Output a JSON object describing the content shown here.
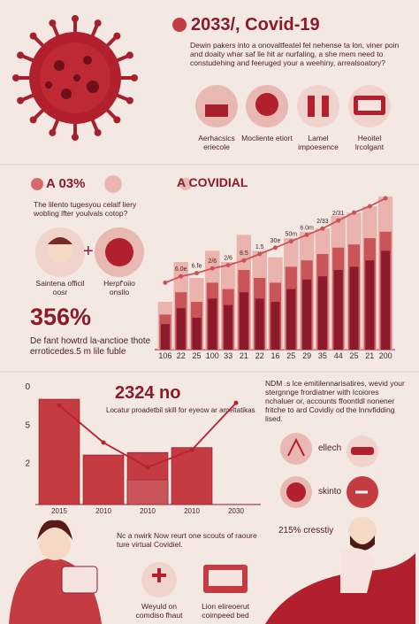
{
  "header": {
    "title": "2033/, Covid-19",
    "intro": "Dewin pakers into a onovaltfeatel fel nehense ta lon, viner poin and doaity whar saf lle hit ar nurfaling, a she mem need to constudehing and feeruged your a weehiny, arrealsoatory?"
  },
  "icons": [
    "Aerhacsics eriecole",
    "Mocliente etiort",
    "Lamel impoesence",
    "Heoitel lrcolgant"
  ],
  "left": {
    "heading": "A 03%",
    "question": "The lilento tugesyou celalf liery wobling lfter youlvals cotop?",
    "face_label": "Saintena officil oosr",
    "virus_label": "Herpf'oiio onsllo",
    "stat": "356%",
    "note": "De fant howtrd la-anctioe thote erroticedes.5 m lile fuble"
  },
  "right": {
    "text": "NDM .s lce emitilennarisatires, wevid your stergnnge frordiatner with Icoiores nchaluer or, accounts ffoontldl nonener fritche to ard Covidiy od the lnnvfidding lised.",
    "item1": "ellech",
    "item2": "skinto"
  },
  "footer": {
    "text": "Nc a nwirk Now reurt one scouts of raoure ture virtual Covidiel.",
    "label1": "Weyuld on comdiso fhaut",
    "label2": "Lion elireoerut coimpeed bed",
    "stat": "215% cresstiy"
  },
  "chart_data": [
    {
      "type": "bar",
      "title": "A COVIDIAL",
      "categories": [
        "106",
        "22",
        "25",
        "100",
        "33",
        "21",
        "22",
        "16",
        "25",
        "29",
        "35",
        "44",
        "25",
        "21",
        "200"
      ],
      "ylim": [
        0,
        100
      ],
      "series": [
        {
          "color": "#eab3ae",
          "values": [
            30,
            55,
            45,
            62,
            55,
            72,
            62,
            58,
            70,
            74,
            76,
            84,
            86,
            90,
            96
          ]
        },
        {
          "color": "#c9545a",
          "values": [
            22,
            36,
            30,
            42,
            38,
            50,
            45,
            42,
            52,
            56,
            60,
            64,
            66,
            70,
            74
          ]
        },
        {
          "color": "#8b1a2b",
          "values": [
            16,
            26,
            20,
            32,
            28,
            36,
            32,
            30,
            38,
            44,
            46,
            50,
            52,
            56,
            62
          ]
        },
        {
          "type": "line",
          "color": "#c9545a",
          "values": [
            42,
            46,
            48,
            51,
            53,
            56,
            60,
            64,
            68,
            72,
            76,
            81,
            86,
            90,
            95
          ],
          "point_labels": [
            null,
            "6.0e",
            "6.fe",
            "2/6",
            "2/6",
            "8.5",
            "1.5",
            "30e",
            "50m",
            "6.0m",
            "2/33",
            "2/31",
            null,
            null,
            null
          ]
        }
      ]
    },
    {
      "type": "bar",
      "title": "2324 no",
      "subtitle": "Locatur proadetbil skill for eyeow ar ameltatikas",
      "categories": [
        "2015",
        "2010",
        "2010",
        "2010",
        "2030"
      ],
      "ylabels": [
        "0",
        "5",
        "2"
      ],
      "ylim": [
        0,
        100
      ],
      "series": [
        {
          "color": "#c53b42",
          "values": [
            85,
            40,
            42,
            46,
            null
          ]
        },
        {
          "color": "#c9545a",
          "values": [
            null,
            null,
            20,
            null,
            null
          ]
        },
        {
          "type": "line",
          "color": "#b8222e",
          "values": [
            80,
            50,
            30,
            44,
            82
          ]
        }
      ]
    }
  ]
}
